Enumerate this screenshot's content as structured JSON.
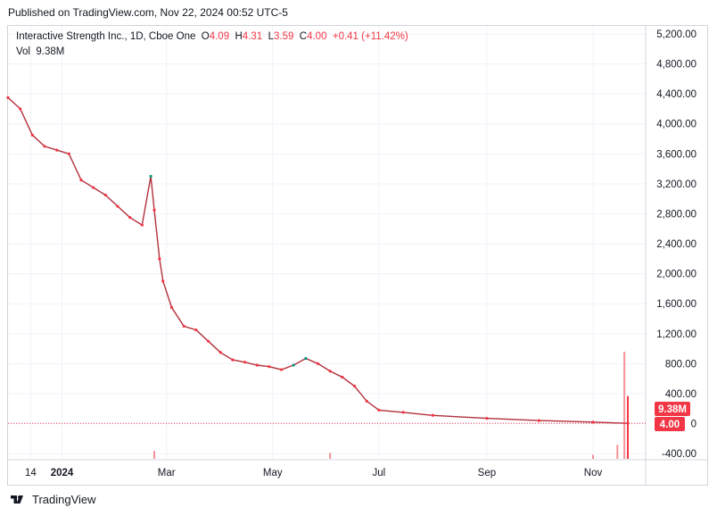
{
  "published": "Published on TradingView.com, Nov 22, 2024 00:52 UTC-5",
  "legend": {
    "symbol": "Interactive Strength Inc., 1D, Cboe One",
    "o_label": "O",
    "o_value": "4.09",
    "h_label": "H",
    "h_value": "4.31",
    "l_label": "L",
    "l_value": "3.59",
    "c_label": "C",
    "c_value": "4.00",
    "change": "+0.41 (+11.42%)",
    "vol_label": "Vol",
    "vol_value": "9.38M"
  },
  "price_badge": "4.00",
  "volume_badge": "9.38M",
  "footer": {
    "brand": "TradingView"
  },
  "colors": {
    "up": "#089981",
    "down": "#f23645",
    "price_line": "#f23645",
    "grid": "#f0f3fa"
  },
  "chart_data": {
    "type": "line",
    "title": "Interactive Strength Inc., 1D, Cboe One",
    "y_ticks": [
      "5,200.00",
      "4,800.00",
      "4,400.00",
      "4,000.00",
      "3,600.00",
      "3,200.00",
      "2,800.00",
      "2,400.00",
      "2,000.00",
      "1,600.00",
      "1,200.00",
      "800.00",
      "400.00",
      "0",
      "-400.00"
    ],
    "y_tick_values": [
      5200,
      4800,
      4400,
      4000,
      3600,
      3200,
      2800,
      2400,
      2000,
      1600,
      1200,
      800,
      400,
      0,
      -400
    ],
    "ylim": [
      -400,
      5200
    ],
    "x_ticks": [
      "14",
      "2024",
      "Mar",
      "May",
      "Jul",
      "Sep",
      "Nov"
    ],
    "x_tick_dates": [
      "2023-12-14",
      "2024-01-01",
      "2024-03-01",
      "2024-05-01",
      "2024-07-01",
      "2024-09-01",
      "2024-11-01"
    ],
    "xlim": [
      "2023-12-01",
      "2024-11-22"
    ],
    "grid": true,
    "series": [
      {
        "name": "Interactive Strength Inc.",
        "x": [
          "2023-12-01",
          "2023-12-08",
          "2023-12-15",
          "2023-12-22",
          "2023-12-29",
          "2024-01-05",
          "2024-01-12",
          "2024-01-19",
          "2024-01-26",
          "2024-02-02",
          "2024-02-09",
          "2024-02-16",
          "2024-02-21",
          "2024-02-23",
          "2024-02-26",
          "2024-02-28",
          "2024-03-04",
          "2024-03-11",
          "2024-03-18",
          "2024-03-25",
          "2024-04-01",
          "2024-04-08",
          "2024-04-15",
          "2024-04-22",
          "2024-04-29",
          "2024-05-06",
          "2024-05-13",
          "2024-05-20",
          "2024-05-27",
          "2024-06-03",
          "2024-06-10",
          "2024-06-17",
          "2024-06-24",
          "2024-07-01",
          "2024-07-15",
          "2024-08-01",
          "2024-09-01",
          "2024-10-01",
          "2024-11-01",
          "2024-11-21"
        ],
        "close": [
          4350,
          4200,
          3850,
          3700,
          3650,
          3600,
          3250,
          3150,
          3050,
          2900,
          2750,
          2650,
          3300,
          2850,
          2200,
          1900,
          1550,
          1300,
          1250,
          1100,
          950,
          850,
          820,
          780,
          760,
          720,
          780,
          870,
          800,
          700,
          620,
          500,
          300,
          180,
          150,
          110,
          70,
          40,
          20,
          4
        ]
      },
      {
        "name": "Vol",
        "x": [
          "2024-02-23",
          "2024-06-03",
          "2024-11-01",
          "2024-11-15",
          "2024-11-19",
          "2024-11-21"
        ],
        "values": [
          1.2,
          0.9,
          0.6,
          2.1,
          16.0,
          9.38
        ]
      }
    ]
  }
}
